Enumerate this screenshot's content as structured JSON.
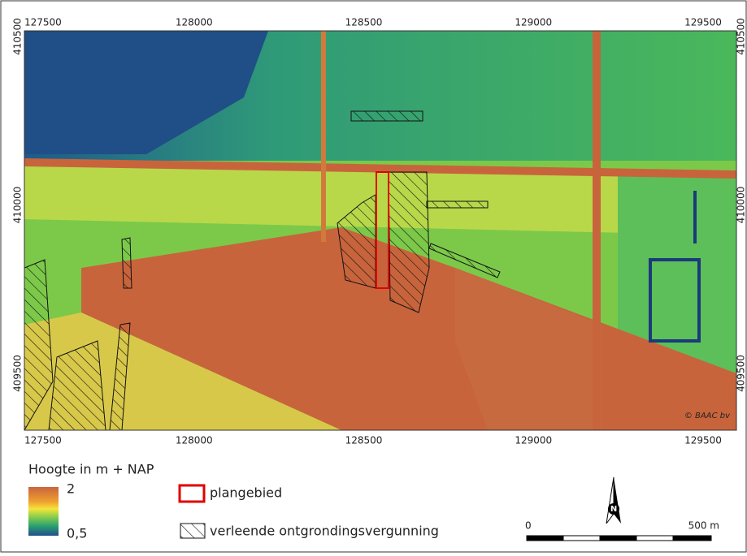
{
  "map": {
    "top_labels": [
      127500,
      128000,
      128500,
      129000,
      129500
    ],
    "bottom_labels": [
      127500,
      128000,
      128500,
      129000,
      129500
    ],
    "left_labels": [
      410500,
      410000,
      409500
    ],
    "right_labels": [
      410500,
      410000,
      409500
    ],
    "copyright": "© BAAC bv",
    "north": "N"
  },
  "legend": {
    "title": "Hoogte in m + NAP",
    "max": "2",
    "min": "0,5",
    "items": [
      "plangebied",
      "verleende ontgrondingsvergunning"
    ]
  },
  "scale": {
    "start": "0",
    "end": "500 m"
  }
}
